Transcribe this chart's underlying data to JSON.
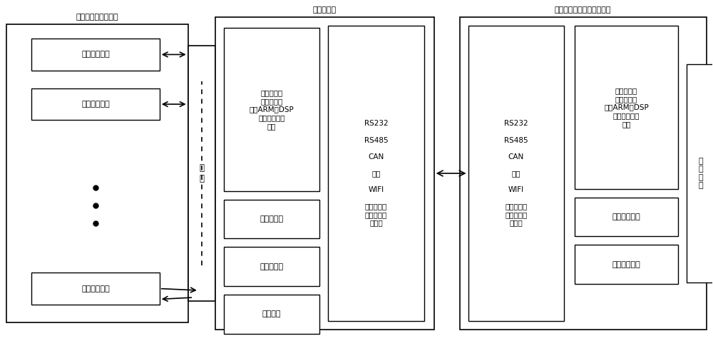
{
  "bg_color": "#ffffff",
  "title": "",
  "section1_label": "射频电子标签附着物",
  "section2_label": "射频阅读器",
  "section3_label": "数据处理终端（或计算机）",
  "rfid_tags": [
    "射频电子标签",
    "射频电子标签",
    "射频电子标签"
  ],
  "antenna_label": "天\n线",
  "reader_blocks": [
    "程序控制器\n（可用单片\n机、ARM、DSP\n等微控制器实\n现）",
    "射频接收器",
    "射频发射器",
    "电源模块"
  ],
  "comm_block_text": "RS232\n\nRS485\n\nCAN\n\n蓝牙\n\nWIFI\n\n等有线或者\n无线通讯接\n口模块",
  "comm_block_text2": "RS232\n\nRS485\n\nCAN\n\n蓝牙\n\nWIFI\n\n等有线或者\n无线通讯接\n口模块",
  "processor_block": "程序控制器\n（可用单片\n机、ARM、DSP\n等微控制器实\n现）",
  "storage_block": "数据存储模块",
  "keyboard_block": "键盘输入模块",
  "display_block": "显\n示\n模\n块"
}
